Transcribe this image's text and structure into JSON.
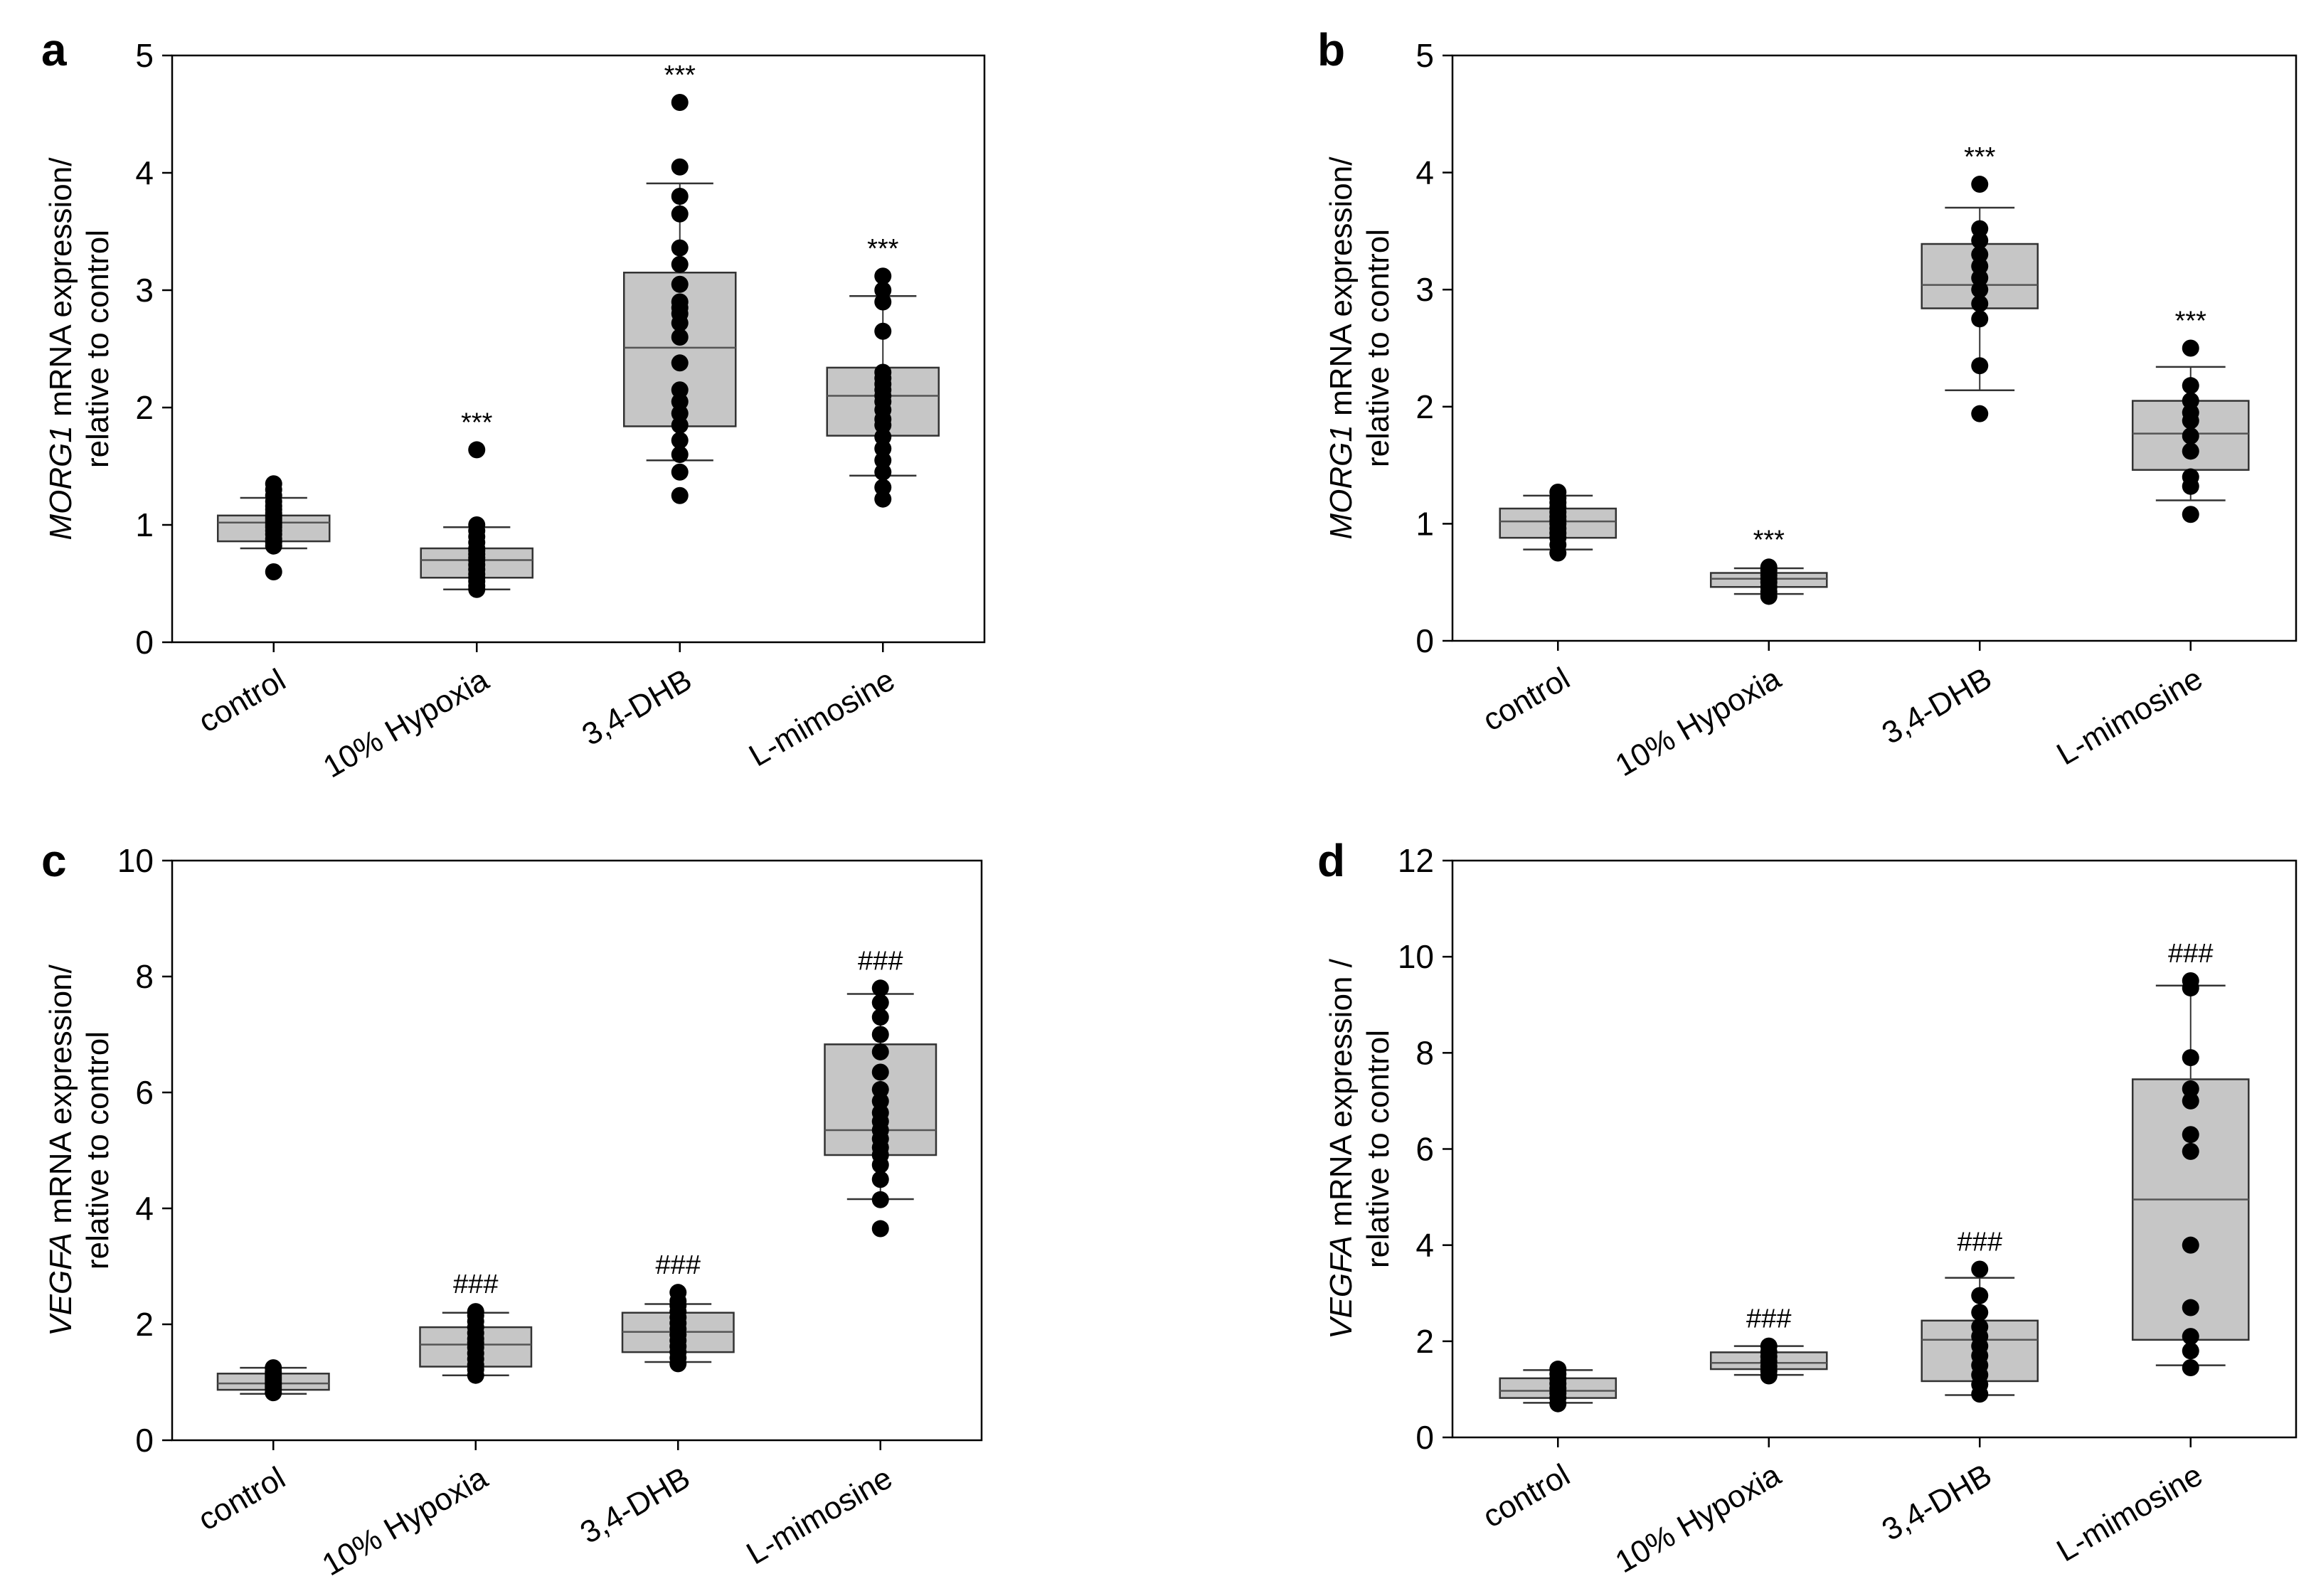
{
  "chart_data": [
    {
      "type": "box",
      "panel": "a",
      "ylabel_gene": "MORG1",
      "ylabel_line1_rest": " mRNA expression/",
      "ylabel_line2": "relative to control",
      "ylim": [
        0,
        5
      ],
      "yticks": [
        "0",
        "1",
        "2",
        "3",
        "4",
        "5"
      ],
      "categories": [
        "control",
        "10% Hypoxia",
        "3,4-DHB",
        "L-mimosine"
      ],
      "boxes": [
        {
          "q1": 0.86,
          "median": 1.02,
          "q3": 1.08,
          "whisker_low": 0.8,
          "whisker_high": 1.23,
          "sig": "",
          "points": [
            0.6,
            0.82,
            0.85,
            0.88,
            0.92,
            0.95,
            0.98,
            1.0,
            1.02,
            1.04,
            1.06,
            1.08,
            1.1,
            1.13,
            1.16,
            1.2,
            1.25,
            1.3,
            1.35
          ]
        },
        {
          "q1": 0.55,
          "median": 0.7,
          "q3": 0.8,
          "whisker_low": 0.45,
          "whisker_high": 0.98,
          "sig": "***",
          "points": [
            0.45,
            0.48,
            0.52,
            0.55,
            0.58,
            0.62,
            0.66,
            0.7,
            0.72,
            0.75,
            0.78,
            0.8,
            0.85,
            0.9,
            0.95,
            1.0,
            1.64
          ]
        },
        {
          "q1": 1.84,
          "median": 2.51,
          "q3": 3.15,
          "whisker_low": 1.55,
          "whisker_high": 3.91,
          "sig": "***",
          "points": [
            1.25,
            1.45,
            1.6,
            1.72,
            1.85,
            1.95,
            2.05,
            2.15,
            2.38,
            2.6,
            2.72,
            2.8,
            2.85,
            2.9,
            3.05,
            3.22,
            3.36,
            3.65,
            3.8,
            4.05,
            4.6
          ]
        },
        {
          "q1": 1.76,
          "median": 2.1,
          "q3": 2.34,
          "whisker_low": 1.42,
          "whisker_high": 2.95,
          "sig": "***",
          "points": [
            1.22,
            1.32,
            1.45,
            1.55,
            1.65,
            1.75,
            1.85,
            1.9,
            1.98,
            2.05,
            2.1,
            2.15,
            2.2,
            2.25,
            2.3,
            2.65,
            2.9,
            3.0,
            3.12
          ]
        }
      ]
    },
    {
      "type": "box",
      "panel": "b",
      "ylabel_gene": "MORG1",
      "ylabel_line1_rest": " mRNA expression/",
      "ylabel_line2": "relative to control",
      "ylim": [
        0,
        5
      ],
      "yticks": [
        "0",
        "1",
        "2",
        "3",
        "4",
        "5"
      ],
      "categories": [
        "control",
        "10% Hypoxia",
        "3,4-DHB",
        "L-mimosine"
      ],
      "boxes": [
        {
          "q1": 0.88,
          "median": 1.02,
          "q3": 1.13,
          "whisker_low": 0.78,
          "whisker_high": 1.24,
          "sig": "",
          "points": [
            0.75,
            0.82,
            0.88,
            0.92,
            0.96,
            1.0,
            1.03,
            1.06,
            1.1,
            1.14,
            1.18,
            1.22,
            1.27
          ]
        },
        {
          "q1": 0.46,
          "median": 0.53,
          "q3": 0.58,
          "whisker_low": 0.4,
          "whisker_high": 0.62,
          "sig": "***",
          "points": [
            0.38,
            0.42,
            0.46,
            0.5,
            0.53,
            0.56,
            0.6,
            0.63
          ]
        },
        {
          "q1": 2.84,
          "median": 3.04,
          "q3": 3.39,
          "whisker_low": 2.14,
          "whisker_high": 3.7,
          "sig": "***",
          "points": [
            1.94,
            2.35,
            2.75,
            2.88,
            3.0,
            3.1,
            3.2,
            3.3,
            3.42,
            3.52,
            3.9
          ]
        },
        {
          "q1": 1.46,
          "median": 1.77,
          "q3": 2.05,
          "whisker_low": 1.2,
          "whisker_high": 2.34,
          "sig": "***",
          "points": [
            1.08,
            1.32,
            1.4,
            1.62,
            1.75,
            1.88,
            1.95,
            2.05,
            2.18,
            2.5
          ]
        }
      ]
    },
    {
      "type": "box",
      "panel": "c",
      "ylabel_gene": "VEGFA",
      "ylabel_line1_rest": " mRNA  expression/",
      "ylabel_line2": "relative to control",
      "ylim": [
        0,
        10
      ],
      "yticks": [
        "0",
        "2",
        "4",
        "6",
        "8",
        "10"
      ],
      "categories": [
        "control",
        "10% Hypoxia",
        "3,4-DHB",
        "L-mimosine"
      ],
      "boxes": [
        {
          "q1": 0.87,
          "median": 0.98,
          "q3": 1.15,
          "whisker_low": 0.8,
          "whisker_high": 1.25,
          "sig": "",
          "points": [
            0.82,
            0.88,
            0.92,
            0.96,
            1.0,
            1.04,
            1.08,
            1.12,
            1.18,
            1.25
          ]
        },
        {
          "q1": 1.27,
          "median": 1.65,
          "q3": 1.95,
          "whisker_low": 1.12,
          "whisker_high": 2.2,
          "sig": "###",
          "points": [
            1.12,
            1.22,
            1.3,
            1.4,
            1.5,
            1.6,
            1.68,
            1.75,
            1.85,
            1.95,
            2.05,
            2.15,
            2.22
          ]
        },
        {
          "q1": 1.52,
          "median": 1.87,
          "q3": 2.2,
          "whisker_low": 1.35,
          "whisker_high": 2.35,
          "sig": "###",
          "points": [
            1.32,
            1.42,
            1.52,
            1.62,
            1.72,
            1.82,
            1.92,
            2.02,
            2.12,
            2.22,
            2.32,
            2.4,
            2.55
          ]
        },
        {
          "q1": 4.92,
          "median": 5.35,
          "q3": 6.83,
          "whisker_low": 4.16,
          "whisker_high": 7.7,
          "sig": "###",
          "points": [
            3.65,
            4.15,
            4.5,
            4.75,
            4.92,
            5.05,
            5.2,
            5.35,
            5.5,
            5.65,
            5.85,
            6.05,
            6.35,
            6.7,
            7.0,
            7.3,
            7.55,
            7.8
          ]
        }
      ]
    },
    {
      "type": "box",
      "panel": "d",
      "ylabel_gene": "VEGFA",
      "ylabel_line1_rest": " mRNA expression /",
      "ylabel_line2": "relative to control",
      "ylim": [
        0,
        12
      ],
      "yticks": [
        "0",
        "2",
        "4",
        "6",
        "8",
        "10",
        "12"
      ],
      "categories": [
        "control",
        "10% Hypoxia",
        "3,4-DHB",
        "L-mimosine"
      ],
      "boxes": [
        {
          "q1": 0.82,
          "median": 0.97,
          "q3": 1.23,
          "whisker_low": 0.72,
          "whisker_high": 1.4,
          "sig": "",
          "points": [
            0.7,
            0.82,
            0.92,
            1.02,
            1.12,
            1.22,
            1.32,
            1.42
          ]
        },
        {
          "q1": 1.42,
          "median": 1.55,
          "q3": 1.77,
          "whisker_low": 1.3,
          "whisker_high": 1.9,
          "sig": "###",
          "points": [
            1.28,
            1.38,
            1.48,
            1.58,
            1.68,
            1.78,
            1.9
          ]
        },
        {
          "q1": 1.17,
          "median": 2.03,
          "q3": 2.43,
          "whisker_low": 0.88,
          "whisker_high": 3.32,
          "sig": "###",
          "points": [
            0.9,
            1.1,
            1.3,
            1.5,
            1.7,
            1.9,
            2.1,
            2.3,
            2.6,
            2.95,
            3.5
          ]
        },
        {
          "q1": 2.03,
          "median": 4.95,
          "q3": 7.45,
          "whisker_low": 1.5,
          "whisker_high": 9.4,
          "sig": "###",
          "points": [
            1.45,
            1.8,
            2.1,
            2.7,
            4.0,
            5.95,
            6.3,
            7.0,
            7.25,
            7.9,
            9.35,
            9.5
          ]
        }
      ]
    }
  ]
}
